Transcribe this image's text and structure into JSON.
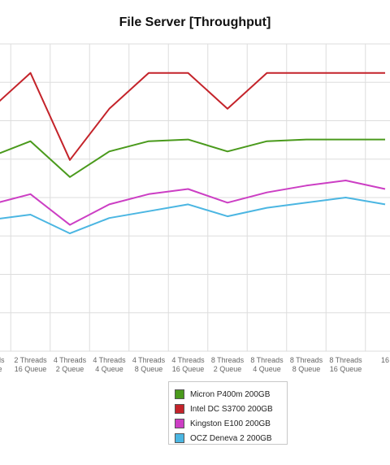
{
  "chart_data": {
    "type": "line",
    "title": "File Server [Throughput]",
    "xlabel": "",
    "ylabel": "",
    "grid": true,
    "legend_position": "bottom",
    "categories": [
      [
        "Threads",
        "Queue"
      ],
      [
        "2 Threads",
        "16 Queue"
      ],
      [
        "4 Threads",
        "2 Queue"
      ],
      [
        "4 Threads",
        "4 Queue"
      ],
      [
        "4 Threads",
        "8 Queue"
      ],
      [
        "4 Threads",
        "16 Queue"
      ],
      [
        "8 Threads",
        "2 Queue"
      ],
      [
        "8 Threads",
        "4 Queue"
      ],
      [
        "8 Threads",
        "8 Queue"
      ],
      [
        "8 Threads",
        "16 Queue"
      ],
      [
        "16",
        ""
      ]
    ],
    "ylim": [
      0,
      9
    ],
    "series": [
      {
        "name": "Micron P400m 200GB",
        "color": "#4a9a1c",
        "values": [
          5.7,
          6.15,
          5.1,
          5.85,
          6.15,
          6.2,
          5.85,
          6.15,
          6.2,
          6.2,
          6.2
        ]
      },
      {
        "name": "Intel DC S3700 200GB",
        "color": "#c4232a",
        "values": [
          7.1,
          8.15,
          5.6,
          7.1,
          8.15,
          8.15,
          7.1,
          8.15,
          8.15,
          8.15,
          8.15
        ]
      },
      {
        "name": "Kingston E100 200GB",
        "color": "#cc3ec4",
        "values": [
          4.3,
          4.6,
          3.7,
          4.3,
          4.6,
          4.75,
          4.35,
          4.65,
          4.85,
          5.0,
          4.75
        ]
      },
      {
        "name": "OCZ Deneva 2 200GB",
        "color": "#4bb6e2",
        "values": [
          3.85,
          4.0,
          3.45,
          3.9,
          4.1,
          4.3,
          3.95,
          4.2,
          4.35,
          4.5,
          4.3
        ]
      }
    ]
  }
}
